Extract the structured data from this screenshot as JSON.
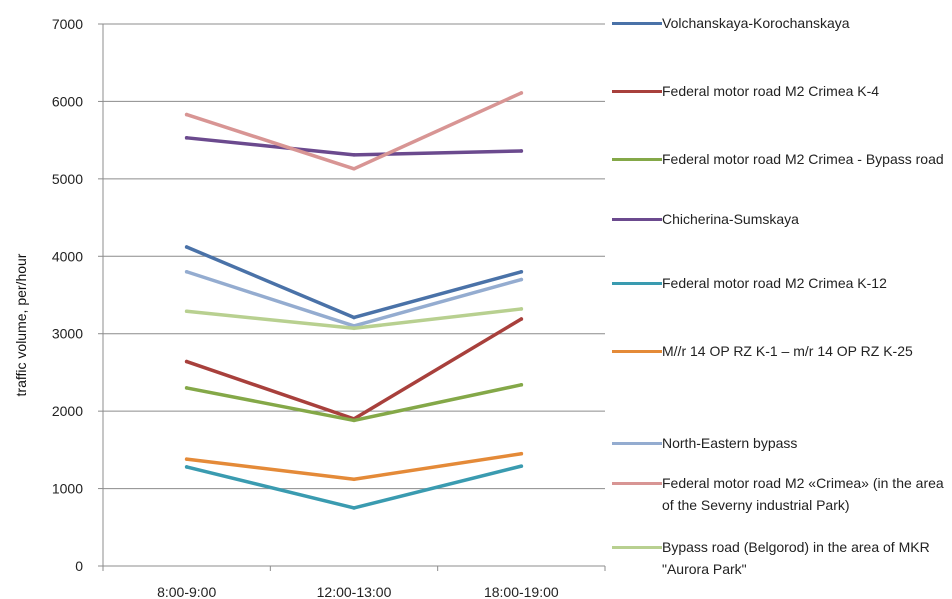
{
  "chart_data": {
    "type": "line",
    "categories": [
      "8:00-9:00",
      "12:00-13:00",
      "18:00-19:00"
    ],
    "ylabel": "traffic volume, per/hour",
    "xlabel": "",
    "ylim": [
      0,
      7000
    ],
    "yticks": [
      0,
      1000,
      2000,
      3000,
      4000,
      5000,
      6000,
      7000
    ],
    "grid": true,
    "legend_position": "right",
    "series": [
      {
        "name": "Volchanskaya-Korochanskaya",
        "color": "#4a72a8",
        "values": [
          4120,
          3210,
          3800
        ]
      },
      {
        "name": "Federal motor road M2  Crimea K-4",
        "color": "#a8403c",
        "values": [
          2640,
          1900,
          3190
        ]
      },
      {
        "name": "Federal motor road M2 Crimea - Bypass road",
        "color": "#84a848",
        "values": [
          2300,
          1880,
          2340
        ]
      },
      {
        "name": "Chicherina-Sumskaya",
        "color": "#6b4a8e",
        "values": [
          5530,
          5310,
          5360
        ]
      },
      {
        "name": "Federal motor road M2 Crimea K-12",
        "color": "#3a9bb0",
        "values": [
          1280,
          750,
          1290
        ]
      },
      {
        "name": "M//r 14 OP RZ K-1 – m/r 14 OP RZ K-25",
        "color": "#e48a38",
        "values": [
          1380,
          1120,
          1450
        ]
      },
      {
        "name": "North-Eastern bypass",
        "color": "#94acd0",
        "values": [
          3800,
          3100,
          3700
        ]
      },
      {
        "name": "Federal motor road M2 «Crimea» (in the area of the Severny industrial Park)",
        "color": "#d89594",
        "values": [
          5830,
          5130,
          6110
        ]
      },
      {
        "name": "Bypass road (Belgorod) in the area of MKR \"Aurora Park\"",
        "color": "#b8d090",
        "values": [
          3290,
          3070,
          3320
        ]
      }
    ]
  }
}
